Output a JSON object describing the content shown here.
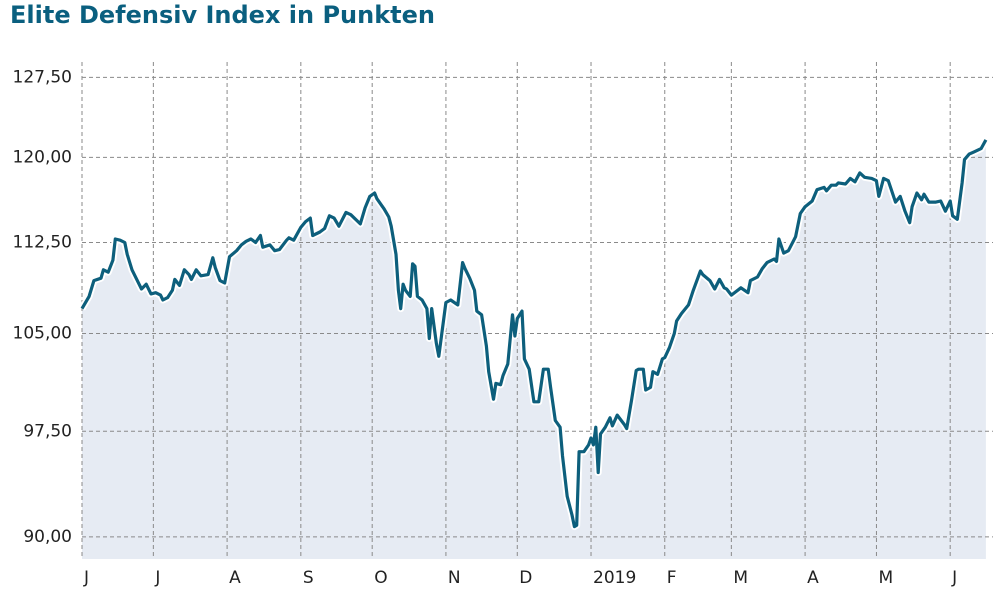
{
  "chart_data": {
    "type": "area_line",
    "title": "Elite Defensiv Index in Punkten",
    "x": [
      0,
      3,
      5,
      8,
      9,
      11,
      13,
      14,
      16,
      18,
      19,
      21,
      24,
      25,
      27,
      29,
      31,
      33,
      34,
      36,
      38,
      39,
      41,
      43,
      45,
      46,
      48,
      50,
      53,
      55,
      56,
      58,
      60,
      62,
      65,
      67,
      69,
      71,
      73,
      75,
      76,
      79,
      81,
      83,
      86,
      87,
      89,
      92,
      94,
      96,
      97,
      100,
      102,
      104,
      106,
      108,
      111,
      113,
      117,
      119,
      121,
      123,
      124,
      127,
      129,
      130,
      132,
      133,
      134,
      135,
      136,
      138,
      139,
      140,
      141,
      143,
      145,
      146,
      147,
      149,
      150,
      153,
      155,
      158,
      160,
      161,
      163,
      165,
      166,
      168,
      170,
      171,
      173,
      174,
      176,
      177,
      179,
      181,
      182,
      183,
      185,
      186,
      188,
      190,
      192,
      194,
      196,
      197,
      199,
      201,
      202,
      204,
      206,
      207,
      208,
      209,
      211,
      213,
      214,
      215,
      216,
      217,
      218,
      220,
      222,
      223,
      225,
      228,
      229,
      231,
      233,
      234,
      236,
      237,
      239,
      240,
      242,
      244,
      245,
      247,
      249,
      250,
      252,
      255,
      257,
      260,
      261,
      264,
      266,
      268,
      270,
      271,
      273,
      275,
      277,
      280,
      281,
      284,
      286,
      288,
      291,
      292,
      293,
      295,
      297,
      300,
      302,
      304,
      307,
      309,
      312,
      313,
      315,
      317,
      318,
      321,
      323,
      325,
      327,
      329,
      332,
      334,
      335,
      337,
      339,
      342,
      344,
      346,
      348,
      349,
      351,
      353,
      354,
      356,
      359,
      361,
      363,
      365,
      366,
      368,
      370,
      371,
      373,
      375,
      378,
      380
    ],
    "values": [
      107.0,
      108.0,
      109.3,
      109.5,
      110.2,
      110.0,
      111.0,
      112.8,
      112.7,
      112.5,
      111.5,
      110.2,
      109.0,
      108.6,
      109.0,
      108.2,
      108.3,
      108.1,
      107.7,
      107.9,
      108.5,
      109.4,
      108.9,
      110.2,
      109.8,
      109.4,
      110.2,
      109.7,
      109.8,
      111.2,
      110.4,
      109.3,
      109.1,
      111.3,
      111.8,
      112.3,
      112.6,
      112.8,
      112.5,
      113.1,
      112.1,
      112.3,
      111.8,
      111.9,
      112.7,
      112.9,
      112.7,
      113.8,
      114.3,
      114.6,
      113.1,
      113.4,
      113.7,
      114.8,
      114.6,
      113.9,
      115.1,
      114.9,
      114.1,
      115.5,
      116.5,
      116.8,
      116.3,
      115.4,
      114.7,
      113.9,
      111.5,
      108.5,
      107.0,
      109.0,
      108.5,
      108.0,
      110.7,
      110.5,
      108.0,
      107.7,
      107.0,
      104.6,
      107.0,
      104.2,
      103.2,
      107.5,
      107.7,
      107.3,
      110.8,
      110.3,
      109.5,
      108.5,
      106.8,
      106.5,
      104.0,
      102.0,
      99.9,
      101.1,
      101.0,
      101.7,
      102.6,
      106.5,
      104.8,
      106.2,
      106.8,
      103.0,
      102.2,
      99.7,
      99.7,
      102.2,
      102.2,
      100.8,
      98.3,
      97.8,
      95.7,
      92.8,
      91.5,
      90.7,
      90.8,
      96.0,
      96.0,
      96.5,
      97.0,
      96.5,
      97.8,
      94.5,
      97.3,
      97.8,
      98.5,
      97.9,
      98.7,
      98.0,
      97.7,
      99.8,
      102.1,
      102.2,
      102.2,
      100.6,
      100.8,
      102.0,
      101.8,
      103.0,
      103.1,
      103.9,
      105.0,
      106.0,
      106.6,
      107.3,
      108.5,
      110.1,
      109.8,
      109.3,
      108.6,
      109.4,
      108.7,
      108.6,
      108.1,
      108.4,
      108.7,
      108.3,
      109.3,
      109.6,
      110.3,
      110.8,
      111.1,
      110.9,
      112.8,
      111.6,
      111.8,
      113.0,
      115.0,
      115.6,
      116.1,
      117.1,
      117.3,
      117.0,
      117.5,
      117.5,
      117.7,
      117.6,
      118.1,
      117.8,
      118.6,
      118.2,
      118.1,
      117.9,
      116.5,
      118.1,
      117.9,
      116.0,
      116.5,
      115.2,
      114.2,
      115.6,
      116.8,
      116.2,
      116.7,
      116.0,
      116.0,
      116.1,
      115.2,
      116.1,
      114.8,
      114.5,
      117.7,
      119.8,
      120.3,
      120.5,
      120.8,
      121.6
    ],
    "color": "#0d5f7c",
    "fill": "#e6ebf3",
    "log_scale": true,
    "grid": true,
    "xlim": [
      0,
      383
    ],
    "xticks": [
      {
        "value": 0,
        "label": "J"
      },
      {
        "value": 30,
        "label": "J"
      },
      {
        "value": 61,
        "label": "A"
      },
      {
        "value": 92,
        "label": "S"
      },
      {
        "value": 122,
        "label": "O"
      },
      {
        "value": 153,
        "label": "N"
      },
      {
        "value": 183,
        "label": "D"
      },
      {
        "value": 214,
        "label": "2019"
      },
      {
        "value": 245,
        "label": "F"
      },
      {
        "value": 273,
        "label": "M"
      },
      {
        "value": 304,
        "label": "A"
      },
      {
        "value": 334,
        "label": "M"
      },
      {
        "value": 365,
        "label": "J"
      }
    ],
    "ylim": [
      88.5,
      129
    ],
    "yticks": [
      {
        "value": 90,
        "label": "90,00"
      },
      {
        "value": 97.5,
        "label": "97,50"
      },
      {
        "value": 105,
        "label": "105,00"
      },
      {
        "value": 112.5,
        "label": "112,50"
      },
      {
        "value": 120,
        "label": "120,00"
      },
      {
        "value": 127.5,
        "label": "127,50"
      }
    ]
  }
}
